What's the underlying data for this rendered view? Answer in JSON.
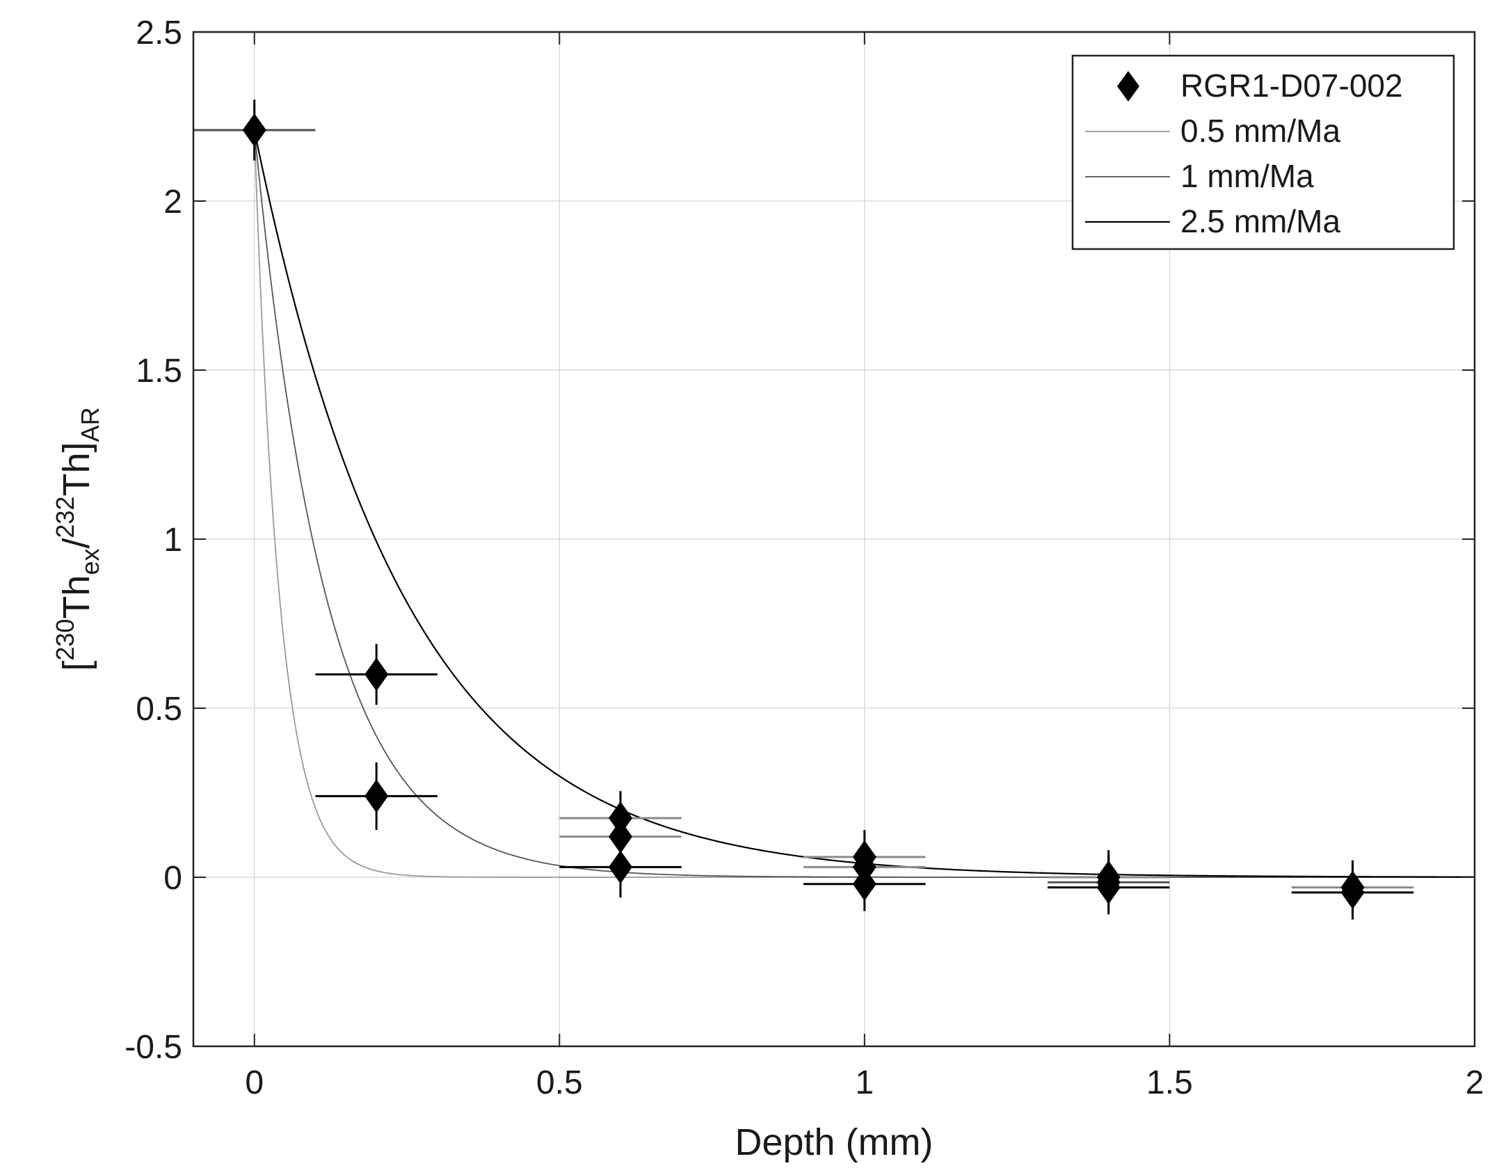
{
  "chart_data": {
    "type": "scatter",
    "title": "",
    "xlabel": "Depth (mm)",
    "ylabel": {
      "open": "[",
      "sup1": "230",
      "base1": "Th",
      "sub1": "ex",
      "slash": "/",
      "sup2": "232",
      "base2": "Th",
      "close": "]",
      "sub2": "AR"
    },
    "xlim": [
      -0.1,
      2
    ],
    "ylim": [
      -0.5,
      2.5
    ],
    "xticks": [
      0,
      0.5,
      1,
      1.5,
      2
    ],
    "xtick_labels": [
      "0",
      "0.5",
      "1",
      "1.5",
      "2"
    ],
    "yticks": [
      -0.5,
      0,
      0.5,
      1,
      1.5,
      2,
      2.5
    ],
    "ytick_labels": [
      "-0.5",
      "0",
      "0.5",
      "1",
      "1.5",
      "2",
      "2.5"
    ],
    "grid": true,
    "legend_position": "top-right",
    "legend": [
      {
        "label": "RGR1-D07-002",
        "kind": "marker",
        "color": "#000000"
      },
      {
        "label": "0.5 mm/Ma",
        "kind": "line",
        "color": "#9a9a9a"
      },
      {
        "label": "1 mm/Ma",
        "kind": "line",
        "color": "#555555"
      },
      {
        "label": "2.5 mm/Ma",
        "kind": "line",
        "color": "#000000"
      }
    ],
    "points": [
      {
        "x": 0.0,
        "y": 2.21,
        "xerr": 0.1,
        "yerr": 0.09,
        "xbar_color": "#4d4d4d"
      },
      {
        "x": 0.2,
        "y": 0.6,
        "xerr": 0.1,
        "yerr": 0.09,
        "xbar_color": "#000000"
      },
      {
        "x": 0.2,
        "y": 0.24,
        "xerr": 0.1,
        "yerr": 0.1,
        "xbar_color": "#000000"
      },
      {
        "x": 0.6,
        "y": 0.175,
        "xerr": 0.1,
        "yerr": 0.08,
        "xbar_color": "#8a8a8a"
      },
      {
        "x": 0.6,
        "y": 0.12,
        "xerr": 0.1,
        "yerr": 0.08,
        "xbar_color": "#8a8a8a"
      },
      {
        "x": 0.6,
        "y": 0.03,
        "xerr": 0.1,
        "yerr": 0.09,
        "xbar_color": "#000000"
      },
      {
        "x": 1.0,
        "y": 0.06,
        "xerr": 0.1,
        "yerr": 0.08,
        "xbar_color": "#8a8a8a"
      },
      {
        "x": 1.0,
        "y": 0.03,
        "xerr": 0.1,
        "yerr": 0.08,
        "xbar_color": "#8a8a8a"
      },
      {
        "x": 1.0,
        "y": -0.02,
        "xerr": 0.1,
        "yerr": 0.08,
        "xbar_color": "#000000"
      },
      {
        "x": 1.4,
        "y": 0.0,
        "xerr": 0.1,
        "yerr": 0.08,
        "xbar_color": "#8a8a8a"
      },
      {
        "x": 1.4,
        "y": -0.015,
        "xerr": 0.1,
        "yerr": 0.08,
        "xbar_color": "#555555"
      },
      {
        "x": 1.4,
        "y": -0.03,
        "xerr": 0.1,
        "yerr": 0.08,
        "xbar_color": "#000000"
      },
      {
        "x": 1.8,
        "y": -0.03,
        "xerr": 0.1,
        "yerr": 0.08,
        "xbar_color": "#8a8a8a"
      },
      {
        "x": 1.8,
        "y": -0.045,
        "xerr": 0.1,
        "yerr": 0.08,
        "xbar_color": "#000000"
      }
    ],
    "models": [
      {
        "name": "0.5 mm/Ma",
        "y0": 2.21,
        "decay_length_mm": 0.042,
        "color": "#9a9a9a"
      },
      {
        "name": "1 mm/Ma",
        "y0": 2.21,
        "decay_length_mm": 0.12,
        "color": "#555555"
      },
      {
        "name": "2.5 mm/Ma",
        "y0": 2.21,
        "decay_length_mm": 0.25,
        "color": "#000000"
      }
    ]
  }
}
